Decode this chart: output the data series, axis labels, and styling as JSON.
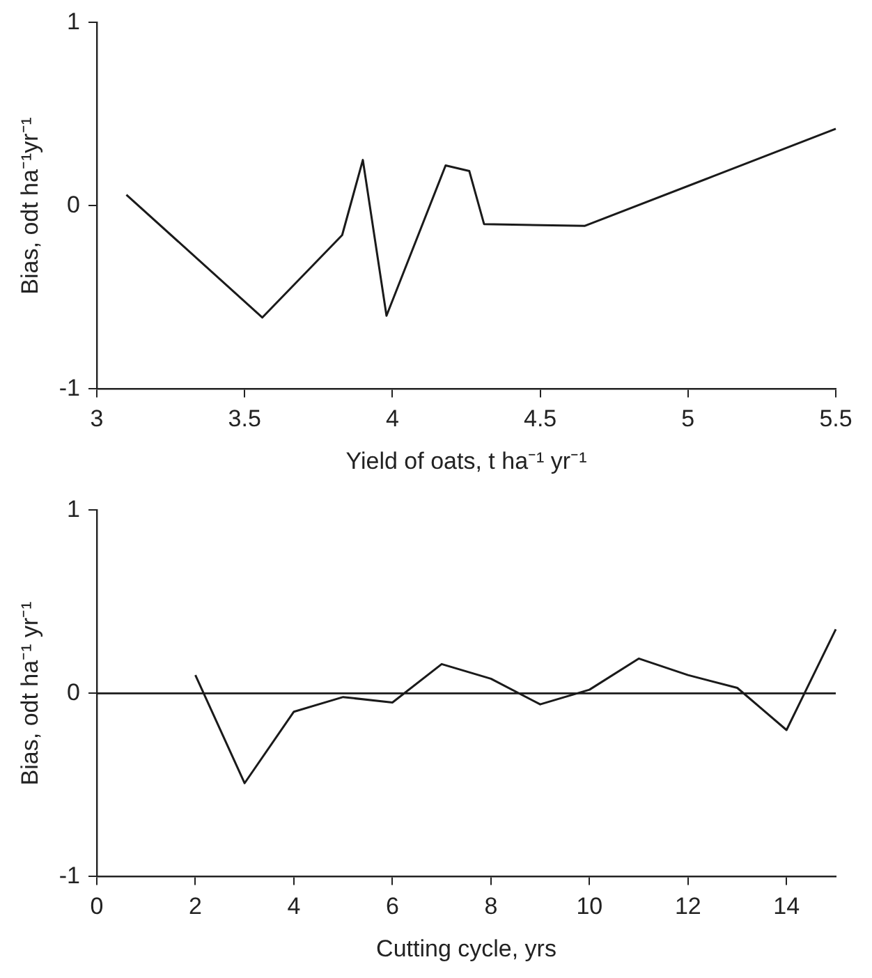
{
  "chart_data": [
    {
      "type": "line",
      "xlabel": "Yield of oats, t ha⁻¹ yr⁻¹",
      "ylabel": "Bias, odt ha⁻¹yr⁻¹",
      "x": [
        3.1,
        3.56,
        3.83,
        3.9,
        3.98,
        4.18,
        4.26,
        4.31,
        4.65,
        5.5
      ],
      "series": [
        {
          "color": "#1a1a1a",
          "values": [
            0.06,
            -0.61,
            -0.16,
            0.25,
            -0.6,
            0.22,
            0.19,
            -0.1,
            -0.11,
            0.42
          ]
        }
      ],
      "xlim": [
        3,
        5.5
      ],
      "xticks": [
        3,
        3.5,
        4,
        4.5,
        5,
        5.5
      ],
      "ylim": [
        -1,
        1
      ],
      "yticks": [
        -1,
        0,
        1
      ],
      "grid": false,
      "legend": false,
      "marker": "none",
      "line_style": "solid"
    },
    {
      "type": "line",
      "xlabel": "Cutting cycle, yrs",
      "ylabel": "Bias, odt ha⁻¹ yr⁻¹",
      "x": [
        2,
        3,
        4,
        5,
        6,
        7,
        8,
        9,
        10,
        11,
        12,
        13,
        14,
        15
      ],
      "series": [
        {
          "color": "#1a1a1a",
          "values": [
            0.1,
            -0.49,
            -0.1,
            -0.02,
            -0.05,
            0.16,
            0.08,
            -0.06,
            0.02,
            0.19,
            0.1,
            0.03,
            -0.2,
            0.35
          ]
        }
      ],
      "xlim": [
        0,
        15
      ],
      "xticks": [
        0,
        2,
        4,
        6,
        8,
        10,
        12,
        14
      ],
      "ylim": [
        -1,
        1
      ],
      "yticks": [
        -1,
        0,
        1
      ],
      "grid": false,
      "legend": false,
      "marker": "none",
      "line_style": "solid",
      "ref_lines": [
        {
          "axis": "y",
          "value": 0,
          "color": "#1a1a1a"
        }
      ]
    }
  ]
}
